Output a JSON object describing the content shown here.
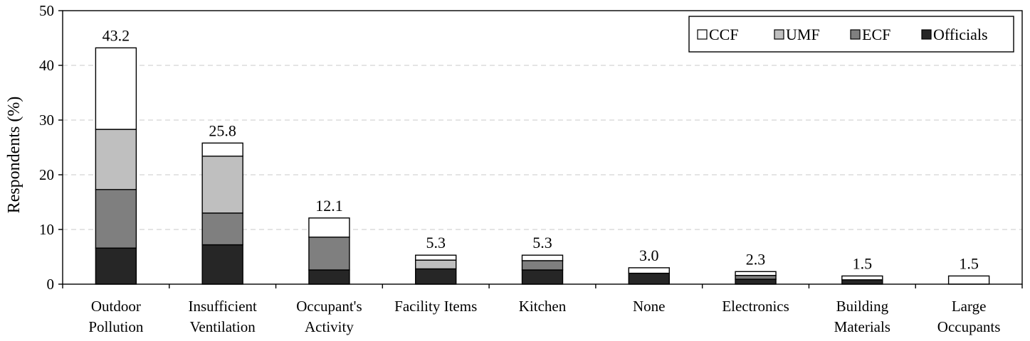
{
  "chart_data": {
    "type": "bar",
    "stacked": true,
    "ylabel": "Respondents (%)",
    "ylim": [
      0,
      50
    ],
    "yticks": [
      0,
      10,
      20,
      30,
      40,
      50
    ],
    "grid": true,
    "legend_position": "top-right",
    "categories": [
      [
        "Outdoor",
        "Pollution"
      ],
      [
        "Insufficient",
        "Ventilation"
      ],
      [
        "Occupant's",
        "Activity"
      ],
      [
        "Facility Items"
      ],
      [
        "Kitchen"
      ],
      [
        "None"
      ],
      [
        "Electronics"
      ],
      [
        "Building",
        "Materials"
      ],
      [
        "Large",
        "Occupants"
      ]
    ],
    "series": [
      {
        "name": "Officials",
        "color": "#262626",
        "values": [
          6.6,
          7.2,
          2.6,
          2.8,
          2.6,
          2.0,
          0.9,
          0.8,
          0.0
        ]
      },
      {
        "name": "ECF",
        "color": "#7f7f7f",
        "values": [
          10.7,
          5.8,
          6.0,
          0.0,
          1.7,
          0.0,
          0.7,
          0.0,
          0.0
        ]
      },
      {
        "name": "UMF",
        "color": "#bfbfbf",
        "values": [
          11.0,
          10.4,
          0.0,
          1.6,
          0.0,
          0.0,
          0.0,
          0.0,
          0.0
        ]
      },
      {
        "name": "CCF",
        "color": "#ffffff",
        "values": [
          14.9,
          2.4,
          3.5,
          0.9,
          1.0,
          1.0,
          0.7,
          0.7,
          1.5
        ]
      }
    ],
    "totals": [
      "43.2",
      "25.8",
      "12.1",
      "5.3",
      "5.3",
      "3.0",
      "2.3",
      "1.5",
      "1.5"
    ],
    "legend_order": [
      "CCF",
      "UMF",
      "ECF",
      "Officials"
    ]
  }
}
